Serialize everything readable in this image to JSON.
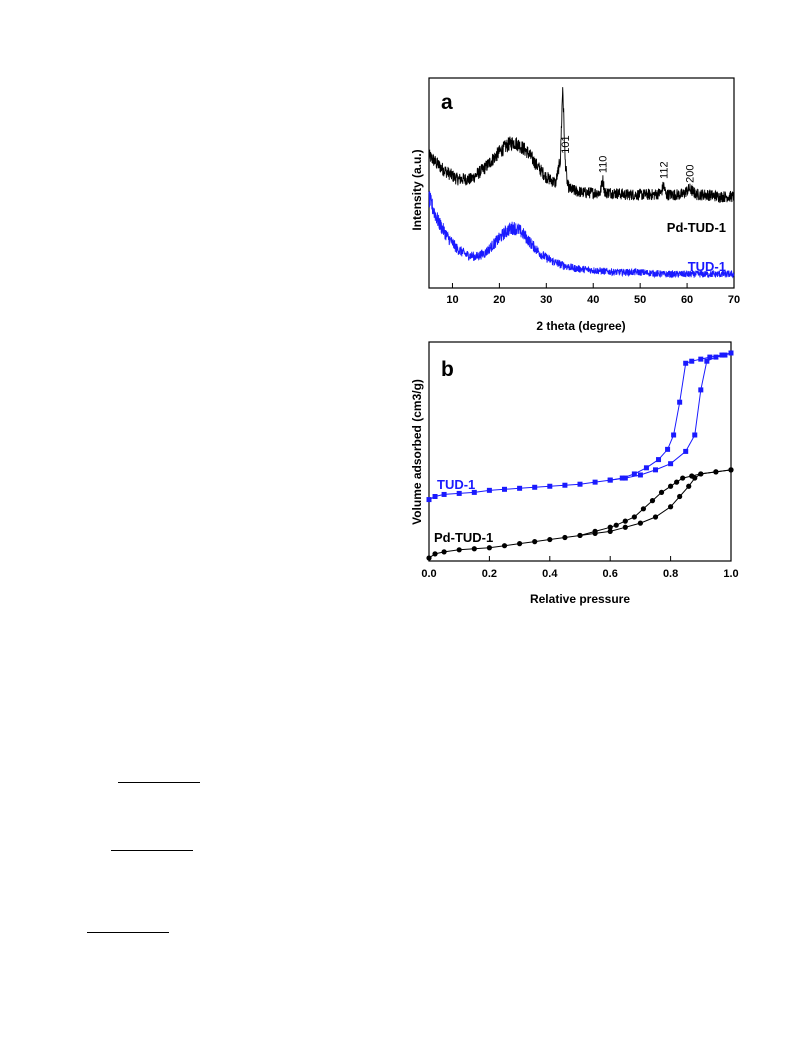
{
  "chart_data": [
    {
      "type": "line",
      "panel_label": "a",
      "xlabel": "2 theta (degree)",
      "ylabel": "Intensity (a.u.)",
      "xlim": [
        5,
        70
      ],
      "xticks": [
        10,
        20,
        30,
        40,
        50,
        60,
        70
      ],
      "y_units": "arbitrary",
      "grid": false,
      "series": [
        {
          "name": "Pd-TUD-1",
          "color": "#000000",
          "x": [
            5,
            8,
            11,
            14,
            17,
            20,
            22,
            23,
            24,
            26,
            28,
            30,
            32,
            33,
            33.5,
            34,
            34.5,
            35,
            36,
            38,
            40,
            41.5,
            42,
            42.5,
            44,
            47,
            50,
            53,
            54.5,
            55,
            55.5,
            57,
            59,
            60.5,
            61,
            62,
            64,
            67,
            70
          ],
          "y": [
            0.64,
            0.57,
            0.52,
            0.52,
            0.58,
            0.66,
            0.7,
            0.71,
            0.7,
            0.66,
            0.59,
            0.53,
            0.5,
            0.62,
            1.0,
            0.62,
            0.49,
            0.47,
            0.46,
            0.45,
            0.45,
            0.45,
            0.52,
            0.45,
            0.45,
            0.44,
            0.44,
            0.44,
            0.45,
            0.49,
            0.44,
            0.44,
            0.44,
            0.47,
            0.46,
            0.44,
            0.44,
            0.43,
            0.43
          ]
        },
        {
          "name": "TUD-1",
          "color": "#1a1aff",
          "x": [
            5,
            7,
            9,
            11,
            13,
            15,
            17,
            19,
            21,
            22,
            23,
            24,
            25,
            27,
            29,
            31,
            33,
            36,
            40,
            45,
            50,
            55,
            60,
            65,
            70
          ],
          "y": [
            0.42,
            0.3,
            0.22,
            0.16,
            0.13,
            0.12,
            0.14,
            0.19,
            0.24,
            0.26,
            0.27,
            0.26,
            0.24,
            0.18,
            0.13,
            0.1,
            0.08,
            0.06,
            0.05,
            0.04,
            0.04,
            0.03,
            0.03,
            0.03,
            0.03
          ]
        }
      ],
      "annotations": [
        {
          "text": "101",
          "x": 34
        },
        {
          "text": "110",
          "x": 42
        },
        {
          "text": "112",
          "x": 55
        },
        {
          "text": "200",
          "x": 60.5
        }
      ]
    },
    {
      "type": "line",
      "panel_label": "b",
      "xlabel": "Relative pressure",
      "ylabel": "Volume adsorbed (cm3/g)",
      "xlim": [
        0.0,
        1.0
      ],
      "xticks": [
        "0.0",
        "0.2",
        "0.4",
        "0.6",
        "0.8",
        "1.0"
      ],
      "y_units": "arbitrary",
      "grid": false,
      "series": [
        {
          "name": "TUD-1",
          "branch": "adsorption",
          "color": "#1a1aff",
          "marker": "square",
          "x": [
            0.0,
            0.02,
            0.05,
            0.1,
            0.15,
            0.2,
            0.25,
            0.3,
            0.35,
            0.4,
            0.45,
            0.5,
            0.55,
            0.6,
            0.65,
            0.7,
            0.75,
            0.8,
            0.85,
            0.88,
            0.9,
            0.92,
            0.95,
            0.98,
            1.0
          ],
          "y": [
            0.285,
            0.3,
            0.31,
            0.315,
            0.32,
            0.33,
            0.335,
            0.34,
            0.345,
            0.35,
            0.355,
            0.36,
            0.37,
            0.38,
            0.39,
            0.405,
            0.43,
            0.46,
            0.52,
            0.6,
            0.82,
            0.96,
            0.98,
            0.99,
            1.0
          ]
        },
        {
          "name": "TUD-1",
          "branch": "desorption",
          "color": "#1a1aff",
          "marker": "square",
          "x": [
            1.0,
            0.97,
            0.93,
            0.9,
            0.87,
            0.85,
            0.83,
            0.81,
            0.79,
            0.76,
            0.72,
            0.68,
            0.64,
            0.6
          ],
          "y": [
            1.0,
            0.99,
            0.98,
            0.97,
            0.96,
            0.95,
            0.76,
            0.6,
            0.53,
            0.48,
            0.44,
            0.41,
            0.39,
            0.38
          ]
        },
        {
          "name": "Pd-TUD-1",
          "branch": "adsorption",
          "color": "#000000",
          "marker": "circle",
          "x": [
            0.0,
            0.02,
            0.05,
            0.1,
            0.15,
            0.2,
            0.25,
            0.3,
            0.35,
            0.4,
            0.45,
            0.5,
            0.55,
            0.6,
            0.65,
            0.7,
            0.75,
            0.8,
            0.83,
            0.86,
            0.88,
            0.9,
            0.95,
            1.0
          ],
          "y": [
            0.0,
            0.02,
            0.03,
            0.04,
            0.045,
            0.05,
            0.06,
            0.07,
            0.08,
            0.09,
            0.1,
            0.11,
            0.12,
            0.13,
            0.15,
            0.17,
            0.2,
            0.25,
            0.3,
            0.35,
            0.39,
            0.41,
            0.42,
            0.43
          ]
        },
        {
          "name": "Pd-TUD-1",
          "branch": "desorption",
          "color": "#000000",
          "marker": "circle",
          "x": [
            1.0,
            0.95,
            0.9,
            0.87,
            0.84,
            0.82,
            0.8,
            0.77,
            0.74,
            0.71,
            0.68,
            0.65,
            0.62,
            0.6,
            0.55,
            0.5
          ],
          "y": [
            0.43,
            0.42,
            0.41,
            0.4,
            0.39,
            0.37,
            0.35,
            0.32,
            0.28,
            0.24,
            0.2,
            0.18,
            0.16,
            0.15,
            0.13,
            0.11
          ]
        }
      ]
    }
  ]
}
